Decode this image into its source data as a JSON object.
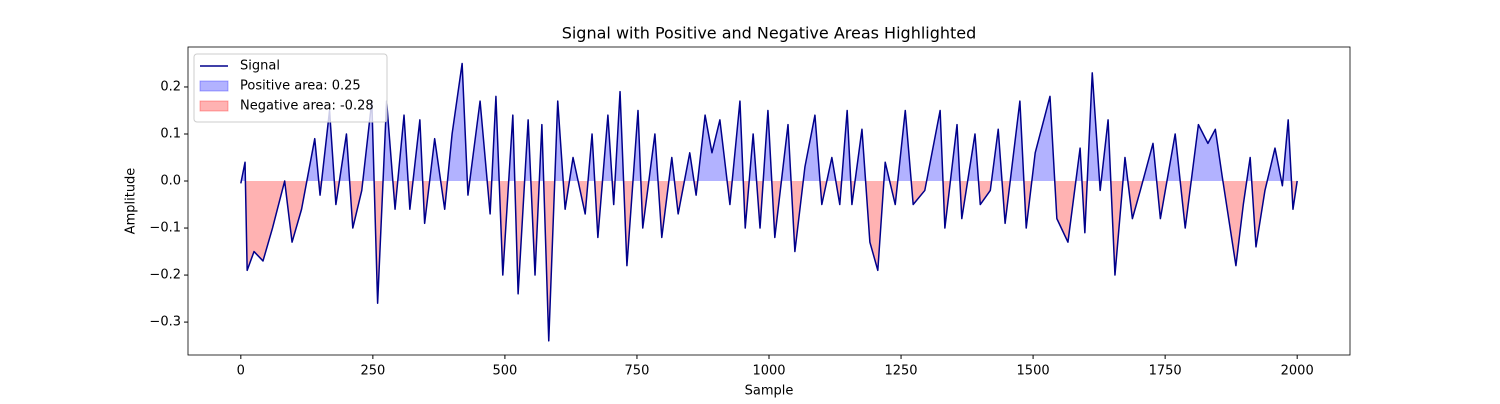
{
  "chart_data": {
    "type": "line",
    "title": "Signal with Positive and Negative Areas Highlighted",
    "x_label": "Sample",
    "y_label": "Amplitude",
    "x": [
      0,
      8,
      12,
      25,
      42,
      60,
      83,
      97,
      115,
      140,
      150,
      168,
      180,
      200,
      212,
      229,
      248,
      259,
      276,
      292,
      309,
      320,
      339,
      348,
      367,
      386,
      400,
      419,
      430,
      453,
      472,
      483,
      496,
      515,
      525,
      544,
      557,
      570,
      583,
      600,
      614,
      629,
      652,
      665,
      676,
      695,
      706,
      718,
      731,
      752,
      761,
      784,
      797,
      816,
      828,
      850,
      862,
      879,
      892,
      907,
      926,
      945,
      955,
      970,
      983,
      998,
      1011,
      1036,
      1049,
      1068,
      1087,
      1100,
      1119,
      1134,
      1148,
      1157,
      1176,
      1191,
      1206,
      1220,
      1239,
      1258,
      1273,
      1295,
      1324,
      1333,
      1356,
      1365,
      1390,
      1400,
      1419,
      1434,
      1447,
      1475,
      1487,
      1504,
      1532,
      1545,
      1566,
      1589,
      1598,
      1612,
      1627,
      1642,
      1655,
      1674,
      1688,
      1703,
      1727,
      1741,
      1769,
      1788,
      1813,
      1831,
      1845,
      1858,
      1884,
      1898,
      1911,
      1922,
      1939,
      1958,
      1972,
      1983,
      1992,
      2000
    ],
    "series": [
      {
        "name": "Signal",
        "color": "#00008b",
        "values": [
          -0.005,
          0.04,
          -0.19,
          -0.15,
          -0.17,
          -0.1,
          0.0,
          -0.13,
          -0.06,
          0.09,
          -0.03,
          0.15,
          -0.05,
          0.1,
          -0.1,
          -0.02,
          0.17,
          -0.26,
          0.17,
          -0.06,
          0.14,
          -0.06,
          0.13,
          -0.09,
          0.09,
          -0.06,
          0.1,
          0.25,
          -0.03,
          0.17,
          -0.07,
          0.18,
          -0.2,
          0.14,
          -0.24,
          0.13,
          -0.2,
          0.12,
          -0.34,
          0.17,
          -0.06,
          0.05,
          -0.07,
          0.1,
          -0.12,
          0.14,
          -0.05,
          0.19,
          -0.18,
          0.15,
          -0.1,
          0.1,
          -0.12,
          0.05,
          -0.07,
          0.06,
          -0.03,
          0.14,
          0.06,
          0.13,
          -0.05,
          0.17,
          -0.1,
          0.1,
          -0.1,
          0.15,
          -0.12,
          0.12,
          -0.15,
          0.03,
          0.14,
          -0.05,
          0.05,
          -0.05,
          0.15,
          -0.05,
          0.11,
          -0.13,
          -0.19,
          0.04,
          -0.05,
          0.15,
          -0.05,
          -0.02,
          0.15,
          -0.1,
          0.12,
          -0.08,
          0.1,
          -0.05,
          -0.02,
          0.11,
          -0.09,
          0.17,
          -0.1,
          0.06,
          0.18,
          -0.08,
          -0.13,
          0.07,
          -0.11,
          0.23,
          -0.02,
          0.13,
          -0.2,
          0.05,
          -0.08,
          -0.02,
          0.08,
          -0.08,
          0.1,
          -0.1,
          0.12,
          0.08,
          0.11,
          0.01,
          -0.18,
          -0.05,
          0.05,
          -0.14,
          -0.02,
          0.07,
          -0.01,
          0.13,
          -0.06,
          0.0
        ]
      }
    ],
    "fills": [
      {
        "name": "Positive area: 0.25",
        "color": "#0000ff",
        "side": "positive"
      },
      {
        "name": "Negative area: -0.28",
        "color": "#ff0000",
        "side": "negative"
      }
    ],
    "xlim": [
      -100,
      2100
    ],
    "ylim": [
      -0.37,
      0.285
    ],
    "xticks": [
      0,
      250,
      500,
      750,
      1000,
      1250,
      1500,
      1750,
      2000
    ],
    "yticks": [
      {
        "value": -0.3,
        "label": "−0.3"
      },
      {
        "value": -0.2,
        "label": "−0.2"
      },
      {
        "value": -0.1,
        "label": "−0.1"
      },
      {
        "value": 0,
        "label": "0.0"
      },
      0.1,
      0.2
    ],
    "legend": "upper left"
  }
}
